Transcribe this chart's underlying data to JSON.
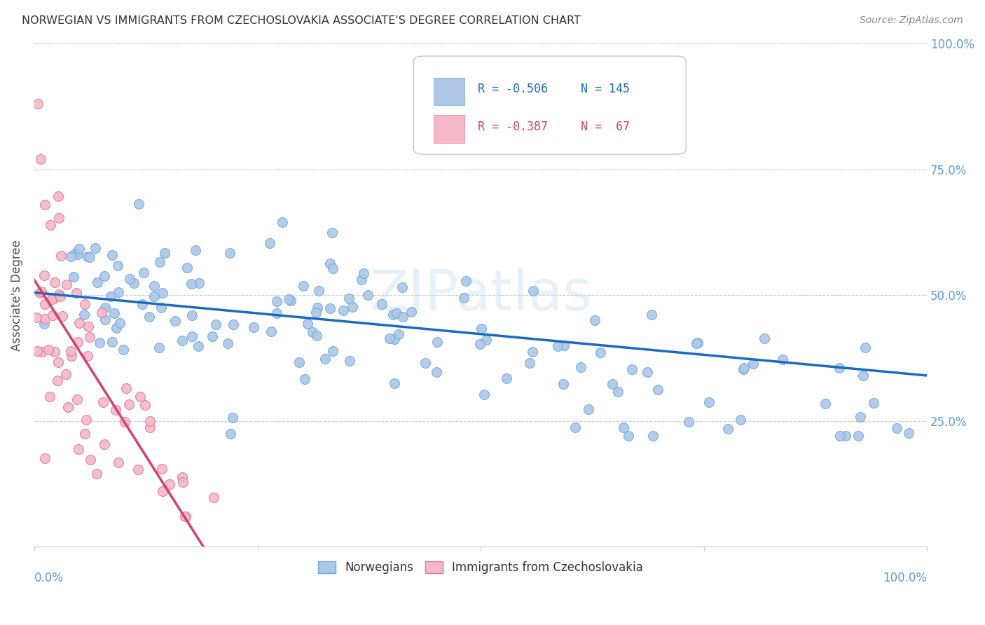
{
  "title": "NORWEGIAN VS IMMIGRANTS FROM CZECHOSLOVAKIA ASSOCIATE'S DEGREE CORRELATION CHART",
  "source": "Source: ZipAtlas.com",
  "ylabel": "Associate's Degree",
  "watermark": "ZIPatlas",
  "legend_r1": "R = -0.506",
  "legend_n1": "N = 145",
  "legend_r2": "R = -0.387",
  "legend_n2": "N =  67",
  "legend_color1": "#aec6e8",
  "legend_color2": "#f4b8c8",
  "scatter_color1": "#aec6e8",
  "scatter_color2": "#f4b8c8",
  "scatter_edgecolor1": "#6aaed6",
  "scatter_edgecolor2": "#e07898",
  "trendline_color1": "#1a6bbf",
  "trendline_color2": "#d44070",
  "trendline_dashed_color": "#cccccc",
  "footer_label1": "Norwegians",
  "footer_label2": "Immigrants from Czechoslovakia",
  "background_color": "#ffffff",
  "grid_color": "#cccccc",
  "axis_label_color": "#5b9bd5",
  "title_color": "#333333",
  "ylabel_color": "#555555",
  "source_color": "#888888",
  "legend_text_color1": "#1a6bbf",
  "legend_text_color2": "#d44070"
}
